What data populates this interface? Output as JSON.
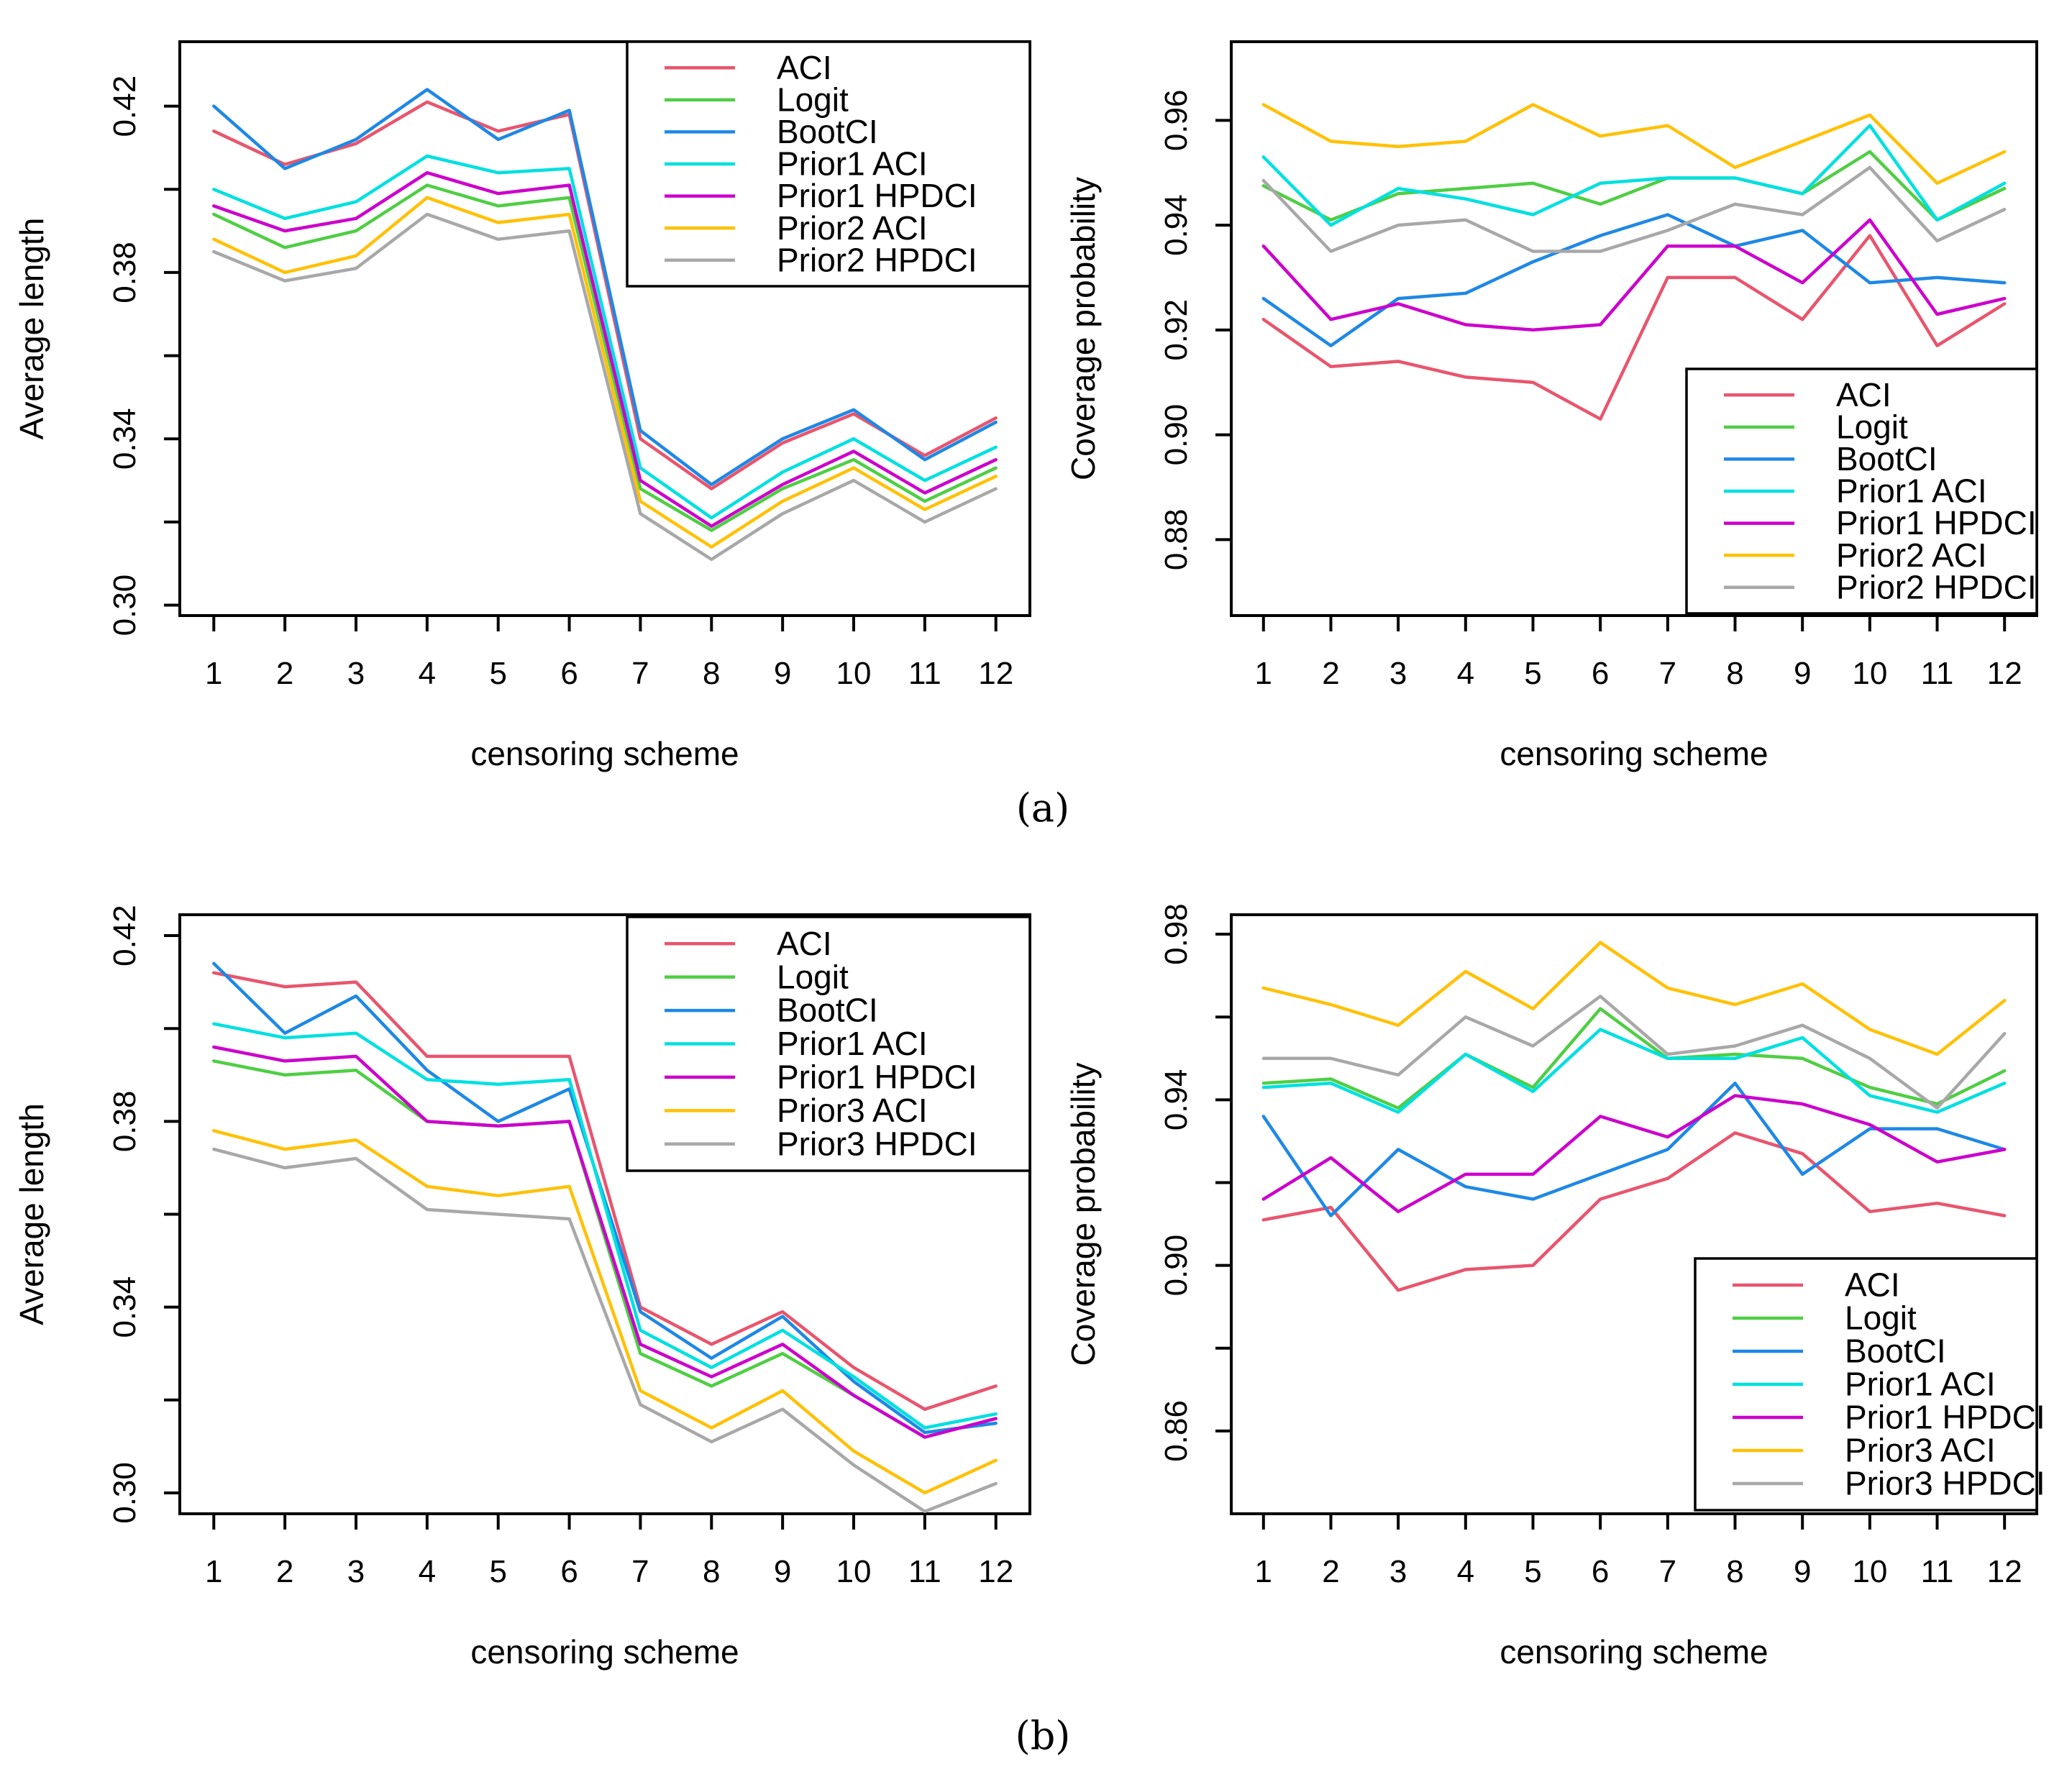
{
  "figure": {
    "panel_a_label": "(a)",
    "panel_b_label": "(b)",
    "background": "#ffffff",
    "axis_color": "#000000"
  },
  "palette": {
    "ACI": "#E8556D",
    "Logit": "#4FCE44",
    "BootCI": "#1E88E5",
    "Prior1 ACI": "#00E0E0",
    "Prior1 HPDCI": "#CC00CC",
    "Prior2 ACI": "#FFC107",
    "Prior2 HPDCI": "#A8A8A8",
    "Prior3 ACI": "#FFC107",
    "Prior3 HPDCI": "#A8A8A8"
  },
  "chart_data": [
    {
      "id": "avg-length-a",
      "panel": "a",
      "type": "line",
      "title": "",
      "xlabel": "censoring scheme",
      "ylabel": "Average length",
      "categories": [
        "1",
        "2",
        "3",
        "4",
        "5",
        "6",
        "7",
        "8",
        "9",
        "10",
        "11",
        "12"
      ],
      "ylim": [
        0.2975,
        0.4355
      ],
      "yticks": [
        0.3,
        0.32,
        0.34,
        0.36,
        0.38,
        0.4,
        0.42
      ],
      "yticks_labeled": [
        0.3,
        0.34,
        0.38,
        0.42
      ],
      "grid": false,
      "legend_position": "top-right",
      "legend_entries": [
        "ACI",
        "Logit",
        "BootCI",
        "Prior1 ACI",
        "Prior1 HPDCI",
        "Prior2 ACI",
        "Prior2 HPDCI"
      ],
      "series": [
        {
          "name": "ACI",
          "values": [
            0.414,
            0.406,
            0.411,
            0.421,
            0.414,
            0.418,
            0.34,
            0.328,
            0.339,
            0.346,
            0.336,
            0.345
          ]
        },
        {
          "name": "Logit",
          "values": [
            0.394,
            0.386,
            0.39,
            0.401,
            0.396,
            0.398,
            0.328,
            0.318,
            0.328,
            0.335,
            0.325,
            0.333
          ]
        },
        {
          "name": "BootCI",
          "values": [
            0.42,
            0.405,
            0.412,
            0.424,
            0.412,
            0.419,
            0.342,
            0.329,
            0.34,
            0.347,
            0.335,
            0.344
          ]
        },
        {
          "name": "Prior1 ACI",
          "values": [
            0.4,
            0.393,
            0.397,
            0.408,
            0.404,
            0.405,
            0.333,
            0.321,
            0.332,
            0.34,
            0.33,
            0.338
          ]
        },
        {
          "name": "Prior1 HPDCI",
          "values": [
            0.396,
            0.39,
            0.393,
            0.404,
            0.399,
            0.401,
            0.33,
            0.319,
            0.329,
            0.337,
            0.327,
            0.335
          ]
        },
        {
          "name": "Prior2 ACI",
          "values": [
            0.388,
            0.38,
            0.384,
            0.398,
            0.392,
            0.394,
            0.325,
            0.314,
            0.325,
            0.333,
            0.323,
            0.331
          ]
        },
        {
          "name": "Prior2 HPDCI",
          "values": [
            0.385,
            0.378,
            0.381,
            0.394,
            0.388,
            0.39,
            0.322,
            0.311,
            0.322,
            0.33,
            0.32,
            0.328
          ]
        }
      ]
    },
    {
      "id": "coverage-a",
      "panel": "a",
      "type": "line",
      "title": "",
      "xlabel": "censoring scheme",
      "ylabel": "Coverage probability",
      "categories": [
        "1",
        "2",
        "3",
        "4",
        "5",
        "6",
        "7",
        "8",
        "9",
        "10",
        "11",
        "12"
      ],
      "ylim": [
        0.8655,
        0.975
      ],
      "yticks": [
        0.88,
        0.9,
        0.92,
        0.94,
        0.96
      ],
      "yticks_labeled": [
        0.88,
        0.9,
        0.92,
        0.94,
        0.96
      ],
      "grid": false,
      "legend_position": "bottom-right",
      "legend_entries": [
        "ACI",
        "Logit",
        "BootCI",
        "Prior1 ACI",
        "Prior1 HPDCI",
        "Prior2 ACI",
        "Prior2 HPDCI"
      ],
      "series": [
        {
          "name": "ACI",
          "values": [
            0.922,
            0.913,
            0.914,
            0.911,
            0.91,
            0.903,
            0.93,
            0.93,
            0.922,
            0.938,
            0.917,
            0.925
          ]
        },
        {
          "name": "Logit",
          "values": [
            0.9475,
            0.941,
            0.946,
            0.947,
            0.948,
            0.944,
            0.949,
            0.949,
            0.946,
            0.954,
            0.941,
            0.947
          ]
        },
        {
          "name": "BootCI",
          "values": [
            0.926,
            0.917,
            0.926,
            0.927,
            0.933,
            0.938,
            0.942,
            0.936,
            0.939,
            0.929,
            0.93,
            0.929
          ]
        },
        {
          "name": "Prior1 ACI",
          "values": [
            0.953,
            0.94,
            0.947,
            0.945,
            0.942,
            0.948,
            0.949,
            0.949,
            0.946,
            0.959,
            0.941,
            0.948
          ]
        },
        {
          "name": "Prior1 HPDCI",
          "values": [
            0.936,
            0.922,
            0.925,
            0.921,
            0.92,
            0.921,
            0.936,
            0.936,
            0.929,
            0.941,
            0.923,
            0.926
          ]
        },
        {
          "name": "Prior2 ACI",
          "values": [
            0.963,
            0.956,
            0.955,
            0.956,
            0.963,
            0.957,
            0.959,
            0.951,
            0.956,
            0.961,
            0.948,
            0.954
          ]
        },
        {
          "name": "Prior2 HPDCI",
          "values": [
            0.9485,
            0.935,
            0.94,
            0.941,
            0.935,
            0.935,
            0.939,
            0.944,
            0.942,
            0.951,
            0.937,
            0.943
          ]
        }
      ]
    },
    {
      "id": "avg-length-b",
      "panel": "b",
      "type": "line",
      "title": "",
      "xlabel": "censoring scheme",
      "ylabel": "Average length",
      "categories": [
        "1",
        "2",
        "3",
        "4",
        "5",
        "6",
        "7",
        "8",
        "9",
        "10",
        "11",
        "12"
      ],
      "ylim": [
        0.2955,
        0.4245
      ],
      "yticks": [
        0.3,
        0.32,
        0.34,
        0.36,
        0.38,
        0.4,
        0.42
      ],
      "yticks_labeled": [
        0.3,
        0.34,
        0.38,
        0.42
      ],
      "grid": false,
      "legend_position": "top-right",
      "legend_entries": [
        "ACI",
        "Logit",
        "BootCI",
        "Prior1 ACI",
        "Prior1 HPDCI",
        "Prior3 ACI",
        "Prior3 HPDCI"
      ],
      "series": [
        {
          "name": "ACI",
          "values": [
            0.412,
            0.409,
            0.41,
            0.394,
            0.394,
            0.394,
            0.34,
            0.332,
            0.339,
            0.327,
            0.318,
            0.323
          ]
        },
        {
          "name": "Logit",
          "values": [
            0.393,
            0.39,
            0.391,
            0.38,
            0.379,
            0.38,
            0.33,
            0.323,
            0.33,
            0.321,
            0.312,
            0.316
          ]
        },
        {
          "name": "BootCI",
          "values": [
            0.414,
            0.399,
            0.407,
            0.391,
            0.38,
            0.387,
            0.339,
            0.329,
            0.338,
            0.324,
            0.313,
            0.315
          ]
        },
        {
          "name": "Prior1 ACI",
          "values": [
            0.401,
            0.398,
            0.399,
            0.389,
            0.388,
            0.389,
            0.335,
            0.327,
            0.335,
            0.325,
            0.314,
            0.317
          ]
        },
        {
          "name": "Prior1 HPDCI",
          "values": [
            0.396,
            0.393,
            0.394,
            0.38,
            0.379,
            0.38,
            0.332,
            0.325,
            0.332,
            0.321,
            0.312,
            0.316
          ]
        },
        {
          "name": "Prior3 ACI",
          "values": [
            0.378,
            0.374,
            0.376,
            0.366,
            0.364,
            0.366,
            0.322,
            0.314,
            0.322,
            0.309,
            0.3,
            0.307
          ]
        },
        {
          "name": "Prior3 HPDCI",
          "values": [
            0.374,
            0.37,
            0.372,
            0.361,
            0.36,
            0.359,
            0.319,
            0.311,
            0.318,
            0.306,
            0.296,
            0.302
          ]
        }
      ]
    },
    {
      "id": "coverage-b",
      "panel": "b",
      "type": "line",
      "title": "",
      "xlabel": "censoring scheme",
      "ylabel": "Coverage probability",
      "categories": [
        "1",
        "2",
        "3",
        "4",
        "5",
        "6",
        "7",
        "8",
        "9",
        "10",
        "11",
        "12"
      ],
      "ylim": [
        0.84,
        0.9847
      ],
      "yticks": [
        0.86,
        0.88,
        0.9,
        0.92,
        0.94,
        0.96,
        0.98
      ],
      "yticks_labeled": [
        0.86,
        0.9,
        0.94,
        0.98
      ],
      "grid": false,
      "legend_position": "bottom-right",
      "legend_entries": [
        "ACI",
        "Logit",
        "BootCI",
        "Prior1 ACI",
        "Prior1 HPDCI",
        "Prior3 ACI",
        "Prior3 HPDCI"
      ],
      "series": [
        {
          "name": "ACI",
          "values": [
            0.911,
            0.914,
            0.894,
            0.899,
            0.9,
            0.916,
            0.921,
            0.932,
            0.927,
            0.913,
            0.915,
            0.912
          ]
        },
        {
          "name": "Logit",
          "values": [
            0.944,
            0.945,
            0.938,
            0.951,
            0.943,
            0.962,
            0.95,
            0.951,
            0.95,
            0.943,
            0.939,
            0.947
          ]
        },
        {
          "name": "BootCI",
          "values": [
            0.936,
            0.912,
            0.928,
            0.919,
            0.916,
            0.922,
            0.928,
            0.944,
            0.922,
            0.933,
            0.933,
            0.928
          ]
        },
        {
          "name": "Prior1 ACI",
          "values": [
            0.943,
            0.944,
            0.937,
            0.951,
            0.942,
            0.957,
            0.95,
            0.95,
            0.955,
            0.941,
            0.937,
            0.944
          ]
        },
        {
          "name": "Prior1 HPDCI",
          "values": [
            0.916,
            0.926,
            0.913,
            0.922,
            0.922,
            0.936,
            0.931,
            0.941,
            0.939,
            0.934,
            0.925,
            0.928
          ]
        },
        {
          "name": "Prior3 ACI",
          "values": [
            0.967,
            0.963,
            0.958,
            0.971,
            0.962,
            0.978,
            0.967,
            0.963,
            0.968,
            0.957,
            0.951,
            0.964
          ]
        },
        {
          "name": "Prior3 HPDCI",
          "values": [
            0.95,
            0.95,
            0.946,
            0.96,
            0.953,
            0.965,
            0.951,
            0.953,
            0.958,
            0.95,
            0.938,
            0.956
          ]
        }
      ]
    }
  ]
}
